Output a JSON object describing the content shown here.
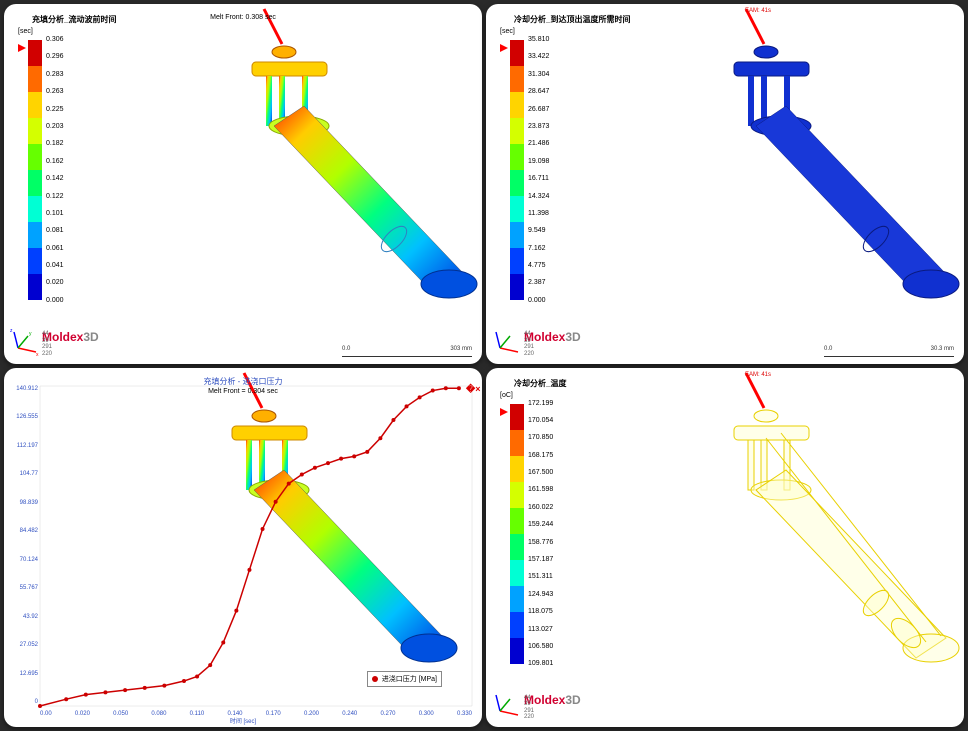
{
  "panels": [
    {
      "title": "充填分析_流动波前时间",
      "melt_front": "Melt Front:    0.308 sec",
      "unit": "[sec]",
      "eam": "",
      "colorbar": {
        "colors": [
          "#d10000",
          "#ff6a00",
          "#ffd400",
          "#d4ff00",
          "#66ff00",
          "#00ff66",
          "#00ffd4",
          "#00a2ff",
          "#0040ff",
          "#0000d0"
        ],
        "labels": [
          "0.306",
          "0.296",
          "0.283",
          "0.263",
          "0.225",
          "0.203",
          "0.182",
          "0.162",
          "0.142",
          "0.122",
          "0.101",
          "0.081",
          "0.061",
          "0.041",
          "0.020",
          "0.000"
        ]
      },
      "model": "rainbow"
    },
    {
      "title": "冷却分析_到达顶出温度所需时间",
      "melt_front": "",
      "unit": "[sec]",
      "eam": "EAM: 41s",
      "colorbar": {
        "colors": [
          "#d10000",
          "#ff6a00",
          "#ffd400",
          "#d4ff00",
          "#66ff00",
          "#00ff66",
          "#00ffd4",
          "#00a2ff",
          "#0040ff",
          "#0000d0"
        ],
        "labels": [
          "35.810",
          "33.422",
          "31.304",
          "28.647",
          "26.687",
          "23.873",
          "21.486",
          "19.098",
          "16.711",
          "14.324",
          "11.398",
          "9.549",
          "7.162",
          "4.775",
          "2.387",
          "0.000"
        ]
      },
      "model": "blue"
    },
    {
      "title": "",
      "chart_title": "充填分析 - 进浇口压力",
      "melt_front": "Melt Front =     0.304 sec",
      "model": "rainbow",
      "chart": {
        "ylabels": [
          "140.912",
          "126.555",
          "112.197",
          "104.77",
          "98.839",
          "84.482",
          "70.124",
          "55.767",
          "43.92",
          "27.052",
          "12.695",
          "0"
        ],
        "xlabels": [
          "0.00",
          "0.020",
          "0.050",
          "0.080",
          "0.110",
          "0.140",
          "0.170",
          "0.200",
          "0.240",
          "0.270",
          "0.300",
          "0.330"
        ],
        "xlabel_title": "时间 [sec]",
        "legend": "进浇口压力 [MPa]",
        "curve_color": "#cc0000",
        "points": [
          [
            0,
            0
          ],
          [
            0.02,
            3
          ],
          [
            0.035,
            5
          ],
          [
            0.05,
            6
          ],
          [
            0.065,
            7
          ],
          [
            0.08,
            8
          ],
          [
            0.095,
            9
          ],
          [
            0.11,
            11
          ],
          [
            0.12,
            13
          ],
          [
            0.13,
            18
          ],
          [
            0.14,
            28
          ],
          [
            0.15,
            42
          ],
          [
            0.16,
            60
          ],
          [
            0.17,
            78
          ],
          [
            0.18,
            90
          ],
          [
            0.19,
            98
          ],
          [
            0.2,
            102
          ],
          [
            0.21,
            105
          ],
          [
            0.22,
            107
          ],
          [
            0.23,
            109
          ],
          [
            0.24,
            110
          ],
          [
            0.25,
            112
          ],
          [
            0.26,
            118
          ],
          [
            0.27,
            126
          ],
          [
            0.28,
            132
          ],
          [
            0.29,
            136
          ],
          [
            0.3,
            139
          ],
          [
            0.31,
            140
          ],
          [
            0.32,
            140
          ]
        ],
        "xmax": 0.33,
        "ymax": 141
      }
    },
    {
      "title": "冷却分析_温度",
      "melt_front": "",
      "unit": "[oC]",
      "eam": "EAM: 41s",
      "colorbar": {
        "colors": [
          "#d10000",
          "#ff6a00",
          "#ffd400",
          "#d4ff00",
          "#66ff00",
          "#00ff66",
          "#00ffd4",
          "#00a2ff",
          "#0040ff",
          "#0000d0"
        ],
        "labels": [
          "172.199",
          "170.054",
          "170.850",
          "168.175",
          "167.500",
          "161.598",
          "160.022",
          "159.244",
          "158.776",
          "157.187",
          "151.311",
          "124.943",
          "118.075",
          "113.027",
          "106.580",
          "109.801"
        ]
      },
      "model": "wire"
    }
  ],
  "logo": {
    "part1": "Moldex",
    "part2": "3D"
  },
  "coords": [
    "44",
    "39",
    "291",
    "220"
  ],
  "scale": {
    "left": "0.0",
    "right": "303 mm"
  },
  "scale2": {
    "left": "0.0",
    "right": "30.3 mm"
  },
  "axis_colors": {
    "x": "#ff0000",
    "y": "#00aa00",
    "z": "#0000ff"
  }
}
